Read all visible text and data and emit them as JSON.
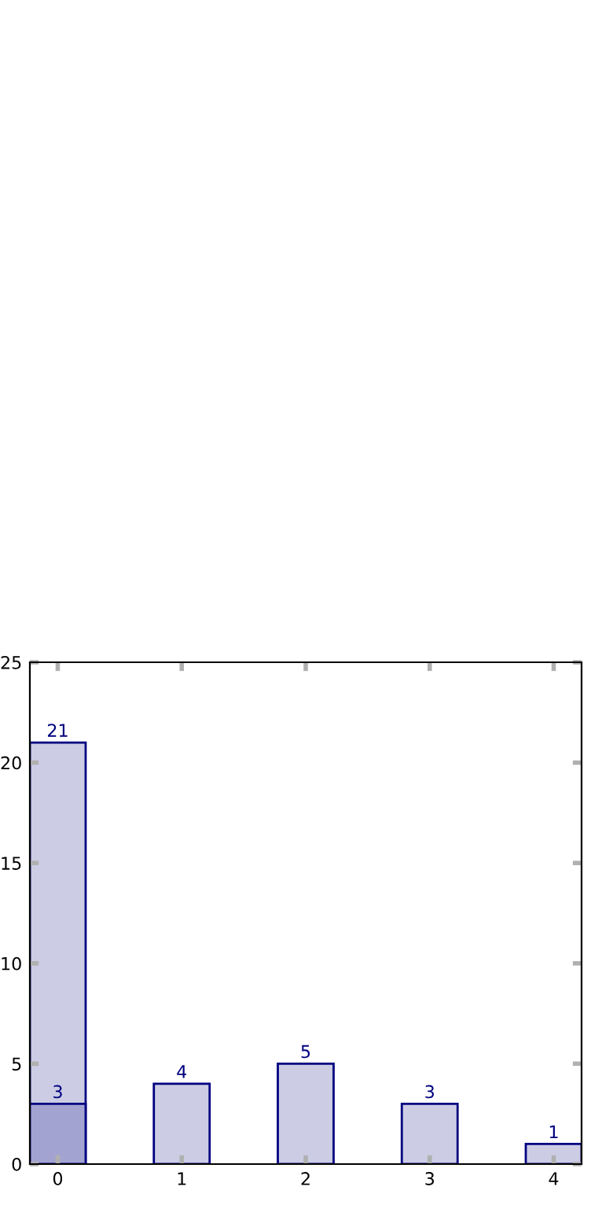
{
  "chart_data": {
    "type": "bar",
    "categories": [
      "0",
      "1",
      "2",
      "3",
      "4"
    ],
    "series": [
      {
        "color": "#ccccE5",
        "values": [
          21,
          4,
          5,
          3,
          1
        ]
      },
      {
        "color": "#a3a3d1",
        "values": [
          3,
          null,
          null,
          null,
          null
        ]
      }
    ],
    "ylim": [
      0,
      25
    ],
    "yticks": [
      0,
      5,
      10,
      15,
      20,
      25
    ],
    "data_labels": true,
    "grid": false,
    "legend": false
  }
}
